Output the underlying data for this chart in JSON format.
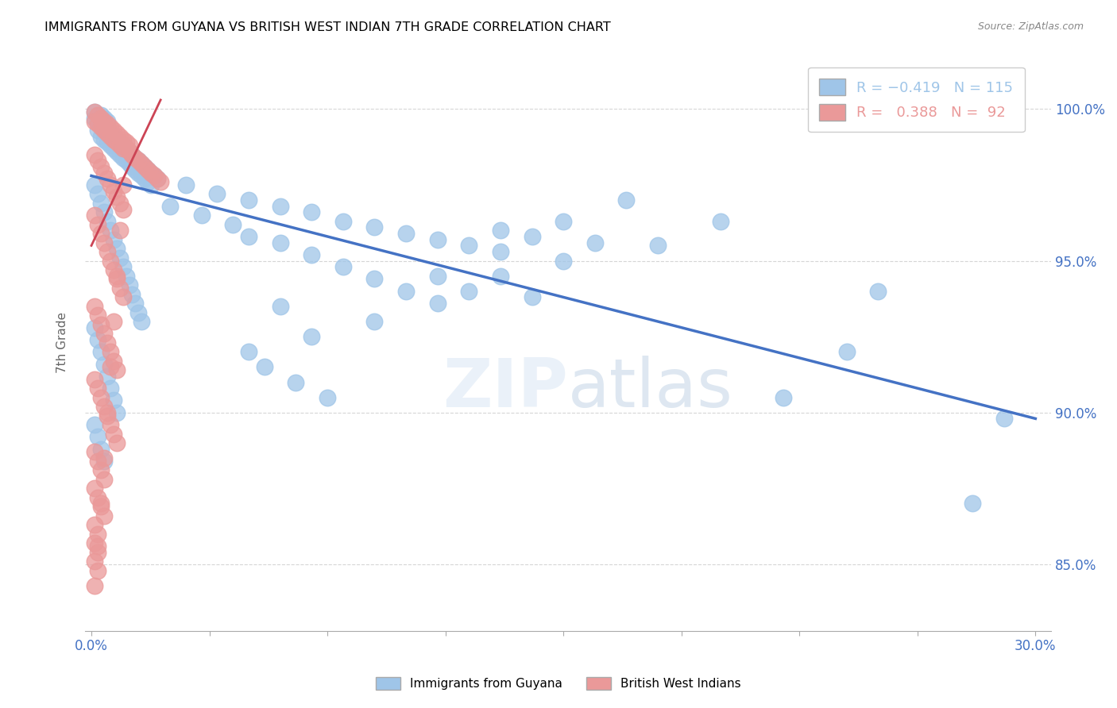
{
  "title": "IMMIGRANTS FROM GUYANA VS BRITISH WEST INDIAN 7TH GRADE CORRELATION CHART",
  "source": "Source: ZipAtlas.com",
  "ylabel": "7th Grade",
  "ytick_labels": [
    "85.0%",
    "90.0%",
    "95.0%",
    "100.0%"
  ],
  "ytick_values": [
    0.85,
    0.9,
    0.95,
    1.0
  ],
  "xlim": [
    -0.002,
    0.305
  ],
  "ylim": [
    0.828,
    1.018
  ],
  "watermark": "ZIPatlas",
  "blue_color": "#9fc5e8",
  "pink_color": "#ea9999",
  "line_blue": "#4472c4",
  "line_pink": "#cc4455",
  "blue_line_x": [
    0.0,
    0.3
  ],
  "blue_line_y": [
    0.978,
    0.898
  ],
  "pink_line_x": [
    0.0,
    0.022
  ],
  "pink_line_y": [
    0.955,
    1.003
  ],
  "blue_points": [
    [
      0.001,
      0.999
    ],
    [
      0.002,
      0.998
    ],
    [
      0.001,
      0.997
    ],
    [
      0.003,
      0.998
    ],
    [
      0.002,
      0.996
    ],
    [
      0.004,
      0.997
    ],
    [
      0.003,
      0.995
    ],
    [
      0.005,
      0.996
    ],
    [
      0.004,
      0.994
    ],
    [
      0.002,
      0.993
    ],
    [
      0.005,
      0.993
    ],
    [
      0.003,
      0.991
    ],
    [
      0.006,
      0.992
    ],
    [
      0.004,
      0.99
    ],
    [
      0.007,
      0.991
    ],
    [
      0.005,
      0.989
    ],
    [
      0.008,
      0.99
    ],
    [
      0.006,
      0.988
    ],
    [
      0.007,
      0.987
    ],
    [
      0.009,
      0.989
    ],
    [
      0.008,
      0.986
    ],
    [
      0.01,
      0.988
    ],
    [
      0.009,
      0.985
    ],
    [
      0.011,
      0.987
    ],
    [
      0.01,
      0.984
    ],
    [
      0.012,
      0.986
    ],
    [
      0.011,
      0.983
    ],
    [
      0.013,
      0.985
    ],
    [
      0.012,
      0.982
    ],
    [
      0.014,
      0.984
    ],
    [
      0.013,
      0.981
    ],
    [
      0.015,
      0.983
    ],
    [
      0.014,
      0.98
    ],
    [
      0.016,
      0.982
    ],
    [
      0.015,
      0.979
    ],
    [
      0.017,
      0.981
    ],
    [
      0.016,
      0.978
    ],
    [
      0.018,
      0.98
    ],
    [
      0.017,
      0.977
    ],
    [
      0.019,
      0.979
    ],
    [
      0.018,
      0.976
    ],
    [
      0.02,
      0.978
    ],
    [
      0.019,
      0.975
    ],
    [
      0.021,
      0.977
    ],
    [
      0.001,
      0.975
    ],
    [
      0.002,
      0.972
    ],
    [
      0.003,
      0.969
    ],
    [
      0.004,
      0.966
    ],
    [
      0.005,
      0.963
    ],
    [
      0.006,
      0.96
    ],
    [
      0.007,
      0.957
    ],
    [
      0.008,
      0.954
    ],
    [
      0.009,
      0.951
    ],
    [
      0.01,
      0.948
    ],
    [
      0.011,
      0.945
    ],
    [
      0.012,
      0.942
    ],
    [
      0.013,
      0.939
    ],
    [
      0.014,
      0.936
    ],
    [
      0.015,
      0.933
    ],
    [
      0.016,
      0.93
    ],
    [
      0.001,
      0.928
    ],
    [
      0.002,
      0.924
    ],
    [
      0.003,
      0.92
    ],
    [
      0.004,
      0.916
    ],
    [
      0.005,
      0.912
    ],
    [
      0.006,
      0.908
    ],
    [
      0.007,
      0.904
    ],
    [
      0.008,
      0.9
    ],
    [
      0.001,
      0.896
    ],
    [
      0.002,
      0.892
    ],
    [
      0.003,
      0.888
    ],
    [
      0.004,
      0.884
    ],
    [
      0.05,
      0.97
    ],
    [
      0.06,
      0.968
    ],
    [
      0.07,
      0.966
    ],
    [
      0.08,
      0.963
    ],
    [
      0.04,
      0.972
    ],
    [
      0.09,
      0.961
    ],
    [
      0.1,
      0.959
    ],
    [
      0.11,
      0.957
    ],
    [
      0.12,
      0.955
    ],
    [
      0.13,
      0.953
    ],
    [
      0.15,
      0.95
    ],
    [
      0.03,
      0.975
    ],
    [
      0.05,
      0.958
    ],
    [
      0.06,
      0.956
    ],
    [
      0.07,
      0.952
    ],
    [
      0.08,
      0.948
    ],
    [
      0.09,
      0.944
    ],
    [
      0.1,
      0.94
    ],
    [
      0.11,
      0.936
    ],
    [
      0.13,
      0.96
    ],
    [
      0.14,
      0.958
    ],
    [
      0.16,
      0.956
    ],
    [
      0.17,
      0.97
    ],
    [
      0.06,
      0.935
    ],
    [
      0.2,
      0.963
    ],
    [
      0.13,
      0.945
    ],
    [
      0.15,
      0.963
    ],
    [
      0.18,
      0.955
    ],
    [
      0.11,
      0.945
    ],
    [
      0.09,
      0.93
    ],
    [
      0.07,
      0.925
    ],
    [
      0.05,
      0.92
    ],
    [
      0.12,
      0.94
    ],
    [
      0.14,
      0.938
    ],
    [
      0.025,
      0.968
    ],
    [
      0.035,
      0.965
    ],
    [
      0.045,
      0.962
    ],
    [
      0.055,
      0.915
    ],
    [
      0.065,
      0.91
    ],
    [
      0.075,
      0.905
    ],
    [
      0.25,
      0.94
    ],
    [
      0.22,
      0.905
    ],
    [
      0.24,
      0.92
    ],
    [
      0.29,
      0.898
    ],
    [
      0.28,
      0.87
    ]
  ],
  "pink_points": [
    [
      0.001,
      0.999
    ],
    [
      0.002,
      0.998
    ],
    [
      0.001,
      0.996
    ],
    [
      0.003,
      0.997
    ],
    [
      0.002,
      0.995
    ],
    [
      0.004,
      0.996
    ],
    [
      0.003,
      0.994
    ],
    [
      0.005,
      0.995
    ],
    [
      0.004,
      0.993
    ],
    [
      0.006,
      0.994
    ],
    [
      0.005,
      0.992
    ],
    [
      0.007,
      0.993
    ],
    [
      0.006,
      0.991
    ],
    [
      0.008,
      0.992
    ],
    [
      0.007,
      0.99
    ],
    [
      0.009,
      0.991
    ],
    [
      0.008,
      0.989
    ],
    [
      0.01,
      0.99
    ],
    [
      0.009,
      0.988
    ],
    [
      0.011,
      0.989
    ],
    [
      0.01,
      0.987
    ],
    [
      0.012,
      0.988
    ],
    [
      0.001,
      0.985
    ],
    [
      0.002,
      0.983
    ],
    [
      0.003,
      0.981
    ],
    [
      0.004,
      0.979
    ],
    [
      0.005,
      0.977
    ],
    [
      0.006,
      0.975
    ],
    [
      0.007,
      0.973
    ],
    [
      0.008,
      0.971
    ],
    [
      0.009,
      0.969
    ],
    [
      0.01,
      0.967
    ],
    [
      0.001,
      0.965
    ],
    [
      0.002,
      0.962
    ],
    [
      0.003,
      0.959
    ],
    [
      0.004,
      0.956
    ],
    [
      0.005,
      0.953
    ],
    [
      0.006,
      0.95
    ],
    [
      0.007,
      0.947
    ],
    [
      0.008,
      0.944
    ],
    [
      0.009,
      0.941
    ],
    [
      0.01,
      0.938
    ],
    [
      0.001,
      0.935
    ],
    [
      0.002,
      0.932
    ],
    [
      0.003,
      0.929
    ],
    [
      0.004,
      0.926
    ],
    [
      0.005,
      0.923
    ],
    [
      0.006,
      0.92
    ],
    [
      0.007,
      0.917
    ],
    [
      0.008,
      0.914
    ],
    [
      0.001,
      0.911
    ],
    [
      0.002,
      0.908
    ],
    [
      0.003,
      0.905
    ],
    [
      0.004,
      0.902
    ],
    [
      0.005,
      0.899
    ],
    [
      0.006,
      0.896
    ],
    [
      0.007,
      0.893
    ],
    [
      0.008,
      0.89
    ],
    [
      0.001,
      0.887
    ],
    [
      0.002,
      0.884
    ],
    [
      0.003,
      0.881
    ],
    [
      0.004,
      0.878
    ],
    [
      0.001,
      0.875
    ],
    [
      0.002,
      0.872
    ],
    [
      0.003,
      0.869
    ],
    [
      0.004,
      0.866
    ],
    [
      0.001,
      0.863
    ],
    [
      0.002,
      0.86
    ],
    [
      0.001,
      0.857
    ],
    [
      0.002,
      0.854
    ],
    [
      0.001,
      0.851
    ],
    [
      0.002,
      0.848
    ],
    [
      0.012,
      0.986
    ],
    [
      0.013,
      0.985
    ],
    [
      0.014,
      0.984
    ],
    [
      0.015,
      0.983
    ],
    [
      0.016,
      0.982
    ],
    [
      0.017,
      0.981
    ],
    [
      0.018,
      0.98
    ],
    [
      0.019,
      0.979
    ],
    [
      0.02,
      0.978
    ],
    [
      0.021,
      0.977
    ],
    [
      0.022,
      0.976
    ],
    [
      0.011,
      0.987
    ],
    [
      0.01,
      0.975
    ],
    [
      0.009,
      0.96
    ],
    [
      0.008,
      0.945
    ],
    [
      0.007,
      0.93
    ],
    [
      0.006,
      0.915
    ],
    [
      0.005,
      0.9
    ],
    [
      0.004,
      0.885
    ],
    [
      0.003,
      0.87
    ],
    [
      0.002,
      0.856
    ],
    [
      0.001,
      0.843
    ]
  ]
}
